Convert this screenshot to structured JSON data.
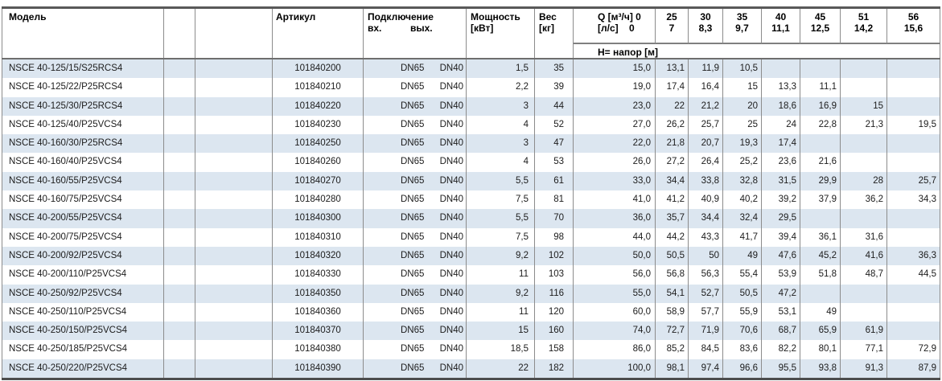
{
  "colors": {
    "stripe": "#dce6f0",
    "grid": "#8c8c8c",
    "frame_top": "#595959",
    "frame_bottom": "#4d4d4d",
    "text": "#1c1c1c"
  },
  "table": {
    "headers": {
      "model": "Модель",
      "article": "Артикул",
      "connection": "Подключение",
      "connection_in": "вх.",
      "connection_out": "вых.",
      "power_line1": "Мощность",
      "power_line2": "[кВт]",
      "weight_line1": "Вес",
      "weight_line2": "[кг]",
      "q_line1": "Q [м³/ч] 0",
      "q_line2": "[л/с]    0",
      "head_row2": "H= напор [м]",
      "q_columns": [
        {
          "m3h": "25",
          "ls": "7"
        },
        {
          "m3h": "30",
          "ls": "8,3"
        },
        {
          "m3h": "35",
          "ls": "9,7"
        },
        {
          "m3h": "40",
          "ls": "11,1"
        },
        {
          "m3h": "45",
          "ls": "12,5"
        },
        {
          "m3h": "51",
          "ls": "14,2"
        },
        {
          "m3h": "56",
          "ls": "15,6"
        }
      ]
    },
    "rows": [
      {
        "model": "NSCE 40-125/15/S25RCS4",
        "article": "101840200",
        "inlet": "DN65",
        "outlet": "DN40",
        "power": "1,5",
        "weight": "35",
        "heads": [
          "15,0",
          "13,1",
          "11,9",
          "10,5",
          "",
          "",
          "",
          ""
        ]
      },
      {
        "model": "NSCE 40-125/22/P25RCS4",
        "article": "101840210",
        "inlet": "DN65",
        "outlet": "DN40",
        "power": "2,2",
        "weight": "39",
        "heads": [
          "19,0",
          "17,4",
          "16,4",
          "15",
          "13,3",
          "11,1",
          "",
          ""
        ]
      },
      {
        "model": "NSCE 40-125/30/P25RCS4",
        "article": "101840220",
        "inlet": "DN65",
        "outlet": "DN40",
        "power": "3",
        "weight": "44",
        "heads": [
          "23,0",
          "22",
          "21,2",
          "20",
          "18,6",
          "16,9",
          "15",
          ""
        ]
      },
      {
        "model": "NSCE 40-125/40/P25VCS4",
        "article": "101840230",
        "inlet": "DN65",
        "outlet": "DN40",
        "power": "4",
        "weight": "52",
        "heads": [
          "27,0",
          "26,2",
          "25,7",
          "25",
          "24",
          "22,8",
          "21,3",
          "19,5"
        ]
      },
      {
        "model": "NSCE 40-160/30/P25RCS4",
        "article": "101840250",
        "inlet": "DN65",
        "outlet": "DN40",
        "power": "3",
        "weight": "47",
        "heads": [
          "22,0",
          "21,8",
          "20,7",
          "19,3",
          "17,4",
          "",
          "",
          ""
        ]
      },
      {
        "model": "NSCE 40-160/40/P25VCS4",
        "article": "101840260",
        "inlet": "DN65",
        "outlet": "DN40",
        "power": "4",
        "weight": "53",
        "heads": [
          "26,0",
          "27,2",
          "26,4",
          "25,2",
          "23,6",
          "21,6",
          "",
          ""
        ]
      },
      {
        "model": "NSCE 40-160/55/P25VCS4",
        "article": "101840270",
        "inlet": "DN65",
        "outlet": "DN40",
        "power": "5,5",
        "weight": "61",
        "heads": [
          "33,0",
          "34,4",
          "33,8",
          "32,8",
          "31,5",
          "29,9",
          "28",
          "25,7"
        ]
      },
      {
        "model": "NSCE 40-160/75/P25VCS4",
        "article": "101840280",
        "inlet": "DN65",
        "outlet": "DN40",
        "power": "7,5",
        "weight": "81",
        "heads": [
          "41,0",
          "41,2",
          "40,9",
          "40,2",
          "39,2",
          "37,9",
          "36,2",
          "34,3"
        ]
      },
      {
        "model": "NSCE 40-200/55/P25VCS4",
        "article": "101840300",
        "inlet": "DN65",
        "outlet": "DN40",
        "power": "5,5",
        "weight": "70",
        "heads": [
          "36,0",
          "35,7",
          "34,4",
          "32,4",
          "29,5",
          "",
          "",
          ""
        ]
      },
      {
        "model": "NSCE 40-200/75/P25VCS4",
        "article": "101840310",
        "inlet": "DN65",
        "outlet": "DN40",
        "power": "7,5",
        "weight": "98",
        "heads": [
          "44,0",
          "44,2",
          "43,3",
          "41,7",
          "39,4",
          "36,1",
          "31,6",
          ""
        ]
      },
      {
        "model": "NSCE 40-200/92/P25VCS4",
        "article": "101840320",
        "inlet": "DN65",
        "outlet": "DN40",
        "power": "9,2",
        "weight": "102",
        "heads": [
          "50,0",
          "50,5",
          "50",
          "49",
          "47,6",
          "45,2",
          "41,6",
          "36,3"
        ]
      },
      {
        "model": "NSCE 40-200/110/P25VCS4",
        "article": "101840330",
        "inlet": "DN65",
        "outlet": "DN40",
        "power": "11",
        "weight": "103",
        "heads": [
          "56,0",
          "56,8",
          "56,3",
          "55,4",
          "53,9",
          "51,8",
          "48,7",
          "44,5"
        ]
      },
      {
        "model": "NSCE 40-250/92/P25VCS4",
        "article": "101840350",
        "inlet": "DN65",
        "outlet": "DN40",
        "power": "9,2",
        "weight": "116",
        "heads": [
          "55,0",
          "54,1",
          "52,7",
          "50,5",
          "47,2",
          "",
          "",
          ""
        ]
      },
      {
        "model": "NSCE 40-250/110/P25VCS4",
        "article": "101840360",
        "inlet": "DN65",
        "outlet": "DN40",
        "power": "11",
        "weight": "120",
        "heads": [
          "60,0",
          "58,9",
          "57,7",
          "55,9",
          "53,1",
          "49",
          "",
          ""
        ]
      },
      {
        "model": "NSCE 40-250/150/P25VCS4",
        "article": "101840370",
        "inlet": "DN65",
        "outlet": "DN40",
        "power": "15",
        "weight": "160",
        "heads": [
          "74,0",
          "72,7",
          "71,9",
          "70,6",
          "68,7",
          "65,9",
          "61,9",
          ""
        ]
      },
      {
        "model": "NSCE 40-250/185/P25VCS4",
        "article": "101840380",
        "inlet": "DN65",
        "outlet": "DN40",
        "power": "18,5",
        "weight": "158",
        "heads": [
          "86,0",
          "85,2",
          "84,5",
          "83,6",
          "82,2",
          "80,1",
          "77,1",
          "72,9"
        ]
      },
      {
        "model": "NSCE 40-250/220/P25VCS4",
        "article": "101840390",
        "inlet": "DN65",
        "outlet": "DN40",
        "power": "22",
        "weight": "182",
        "heads": [
          "100,0",
          "98,1",
          "97,4",
          "96,6",
          "95,5",
          "93,8",
          "91,3",
          "87,9"
        ]
      }
    ]
  }
}
